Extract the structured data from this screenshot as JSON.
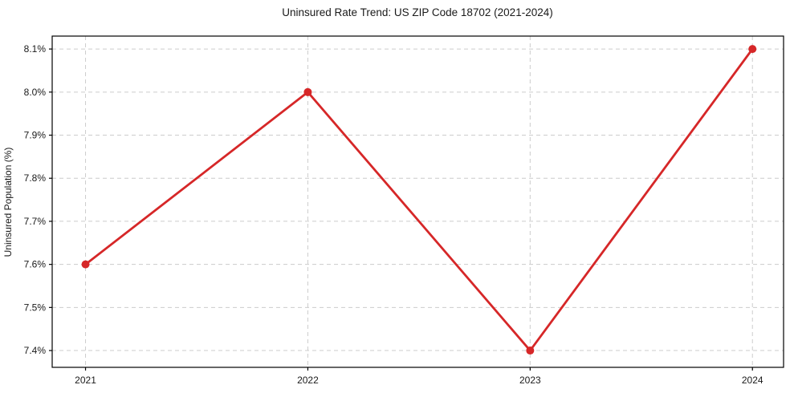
{
  "chart_data": {
    "type": "line",
    "title": "Uninsured Rate Trend: US ZIP Code 18702 (2021-2024)",
    "xlabel": "",
    "ylabel": "Uninsured Population (%)",
    "categories": [
      "2021",
      "2022",
      "2023",
      "2024"
    ],
    "x": [
      2021,
      2022,
      2023,
      2024
    ],
    "values": [
      7.6,
      8.0,
      7.4,
      8.1
    ],
    "yticks": [
      7.4,
      7.5,
      7.6,
      7.7,
      7.8,
      7.9,
      8.0,
      8.1
    ],
    "ytick_labels": [
      "7.4%",
      "7.5%",
      "7.6%",
      "7.7%",
      "7.8%",
      "7.9%",
      "8.0%",
      "8.1%"
    ],
    "xlim": [
      2020.85,
      2024.14
    ],
    "ylim": [
      7.361,
      8.13
    ],
    "grid": true,
    "grid_style": "dashed",
    "legend": "none",
    "marker": "circle",
    "line_color": "#d62728"
  },
  "colors": {
    "line": "#d62728",
    "grid": "#cccccc",
    "axis": "#000000",
    "text": "#1a1a1a",
    "background": "#ffffff"
  }
}
